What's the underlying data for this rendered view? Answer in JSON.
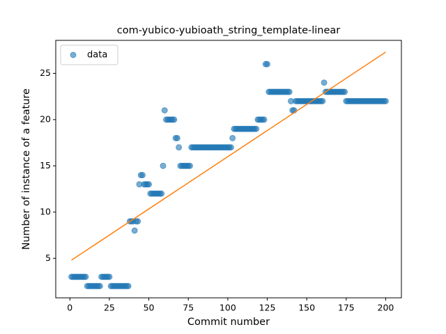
{
  "chart_data": {
    "type": "scatter",
    "title": "com-yubico-yubioath_string_template-linear",
    "x_label": "Commit number",
    "y_label": "Number of instance of a feature",
    "xlim": [
      -8.95,
      209.95
    ],
    "ylim": [
      0.73,
      28.57
    ],
    "xticks": [
      0,
      25,
      50,
      75,
      100,
      125,
      150,
      175,
      200
    ],
    "yticks": [
      5,
      10,
      15,
      20,
      25
    ],
    "grid": false,
    "legend": "upper left",
    "series": [
      {
        "name": "data",
        "type": "scatter",
        "color": "#1f77b4",
        "opacity": 0.6,
        "x": [
          1,
          2,
          3,
          4,
          5,
          6,
          7,
          8,
          9,
          10,
          11,
          12,
          13,
          14,
          15,
          16,
          17,
          18,
          19,
          20,
          21,
          22,
          23,
          24,
          25,
          26,
          27,
          28,
          29,
          30,
          31,
          32,
          33,
          34,
          35,
          36,
          37,
          38,
          39,
          40,
          41,
          42,
          43,
          44,
          45,
          46,
          47,
          48,
          49,
          50,
          51,
          52,
          53,
          54,
          55,
          56,
          57,
          58,
          59,
          60,
          61,
          62,
          63,
          64,
          65,
          66,
          67,
          68,
          69,
          70,
          71,
          72,
          73,
          74,
          75,
          76,
          77,
          78,
          79,
          80,
          81,
          82,
          83,
          84,
          85,
          86,
          87,
          88,
          89,
          90,
          91,
          92,
          93,
          94,
          95,
          96,
          97,
          98,
          99,
          100,
          101,
          102,
          103,
          104,
          105,
          106,
          107,
          108,
          109,
          110,
          111,
          112,
          113,
          114,
          115,
          116,
          117,
          118,
          119,
          120,
          121,
          122,
          123,
          124,
          125,
          126,
          127,
          128,
          129,
          130,
          131,
          132,
          133,
          134,
          135,
          136,
          137,
          138,
          139,
          140,
          141,
          142,
          143,
          144,
          145,
          146,
          147,
          148,
          149,
          150,
          151,
          152,
          153,
          154,
          155,
          156,
          157,
          158,
          159,
          160,
          161,
          162,
          163,
          164,
          165,
          166,
          167,
          168,
          169,
          170,
          171,
          172,
          173,
          174,
          175,
          176,
          177,
          178,
          179,
          180,
          181,
          182,
          183,
          184,
          185,
          186,
          187,
          188,
          189,
          190,
          191,
          192,
          193,
          194,
          195,
          196,
          197,
          198,
          199,
          200
        ],
        "values": [
          3,
          3,
          3,
          3,
          3,
          3,
          3,
          3,
          3,
          3,
          2,
          2,
          2,
          2,
          2,
          2,
          2,
          2,
          2,
          3,
          3,
          3,
          3,
          3,
          3,
          2,
          2,
          2,
          2,
          2,
          2,
          2,
          2,
          2,
          2,
          2,
          2,
          9,
          9,
          9,
          8,
          9,
          9,
          13,
          14,
          14,
          13,
          13,
          13,
          13,
          12,
          12,
          12,
          12,
          12,
          12,
          12,
          12,
          15,
          21,
          20,
          20,
          20,
          20,
          20,
          20,
          18,
          18,
          17,
          15,
          15,
          15,
          15,
          15,
          15,
          15,
          17,
          17,
          17,
          17,
          17,
          17,
          17,
          17,
          17,
          17,
          17,
          17,
          17,
          17,
          17,
          17,
          17,
          17,
          17,
          17,
          17,
          17,
          17,
          17,
          17,
          17,
          18,
          19,
          19,
          19,
          19,
          19,
          19,
          19,
          19,
          19,
          19,
          19,
          19,
          19,
          19,
          19,
          20,
          20,
          20,
          20,
          20,
          26,
          26,
          23,
          23,
          23,
          23,
          23,
          23,
          23,
          23,
          23,
          23,
          23,
          23,
          23,
          23,
          22,
          21,
          21,
          22,
          22,
          22,
          22,
          22,
          22,
          22,
          22,
          22,
          22,
          22,
          22,
          22,
          22,
          22,
          22,
          22,
          22,
          24,
          23,
          23,
          23,
          23,
          23,
          23,
          23,
          23,
          23,
          23,
          23,
          23,
          23,
          22,
          22,
          22,
          22,
          22,
          22,
          22,
          22,
          22,
          22,
          22,
          22,
          22,
          22,
          22,
          22,
          22,
          22,
          22,
          22,
          22,
          22,
          22,
          22,
          22,
          22
        ]
      },
      {
        "type": "line",
        "color": "#ff7f0e",
        "x": [
          1,
          200
        ],
        "values": [
          4.8,
          27.3
        ]
      }
    ]
  }
}
